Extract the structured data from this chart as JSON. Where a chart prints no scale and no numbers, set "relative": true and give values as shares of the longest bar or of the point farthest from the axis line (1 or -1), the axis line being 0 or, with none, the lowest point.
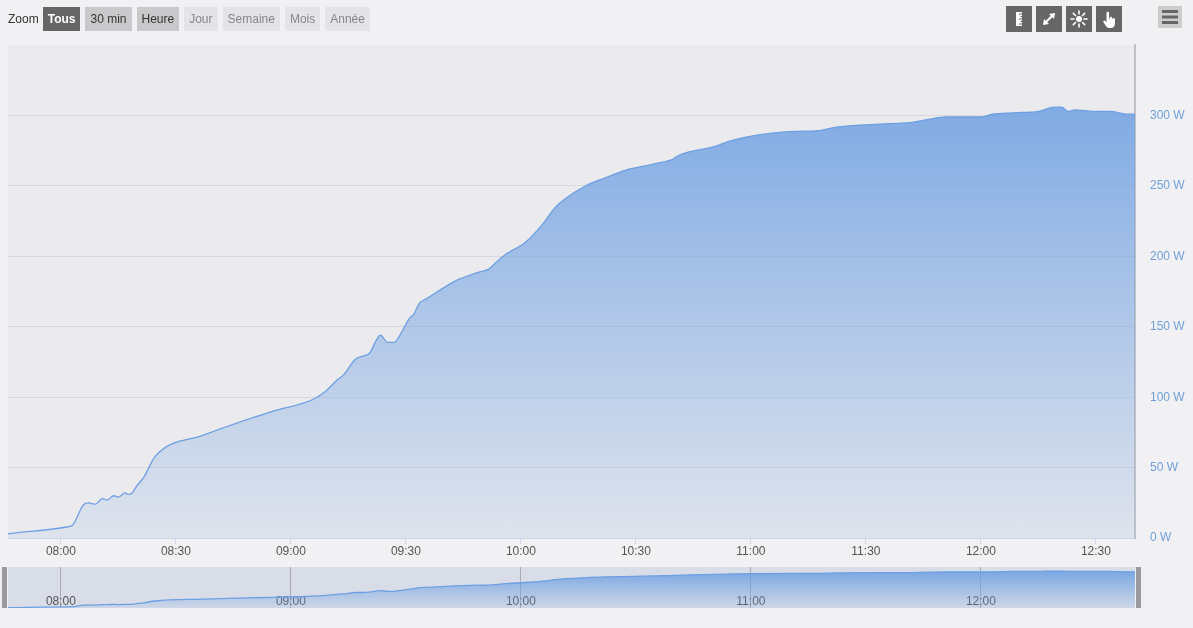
{
  "chart_data": [
    {
      "type": "area",
      "annotations": [
        "Zoom",
        "Tous",
        "30 min",
        "Heure",
        "Jour",
        "Semaine",
        "Mois",
        "Année"
      ],
      "x": [
        7.77,
        8.03,
        8.05,
        8.1,
        8.12,
        8.15,
        8.18,
        8.2,
        8.23,
        8.25,
        8.28,
        8.29,
        8.31,
        8.33,
        8.36,
        8.41,
        8.62,
        8.92,
        9.09,
        9.15,
        9.2,
        9.23,
        9.28,
        9.31,
        9.34,
        9.39,
        9.42,
        9.45,
        9.47,
        9.52,
        9.53,
        9.56,
        9.59,
        9.72,
        9.82,
        9.86,
        9.9,
        9.93,
        10.02,
        10.1,
        10.15,
        10.28,
        10.37,
        10.45,
        10.59,
        10.66,
        10.69,
        10.84,
        10.91,
        11.02,
        11.24,
        11.27,
        11.38,
        11.56,
        11.69,
        11.76,
        11.85,
        12.0,
        12.05,
        12.14,
        12.25,
        12.32,
        12.35,
        12.38,
        12.41,
        12.49,
        12.56,
        12.64,
        12.67
      ],
      "values": [
        3,
        8,
        9,
        24,
        25,
        24,
        28,
        27,
        30,
        29,
        32,
        31,
        32,
        37,
        43,
        58,
        73,
        90,
        98,
        104,
        112,
        116,
        127,
        129,
        131,
        144,
        139,
        139,
        143,
        157,
        158,
        167,
        170,
        183,
        189,
        191,
        197,
        201,
        210,
        224,
        235,
        250,
        256,
        261,
        266,
        269,
        272,
        278,
        282,
        286,
        289,
        289,
        292,
        294,
        295,
        297,
        299,
        299,
        301,
        302,
        303,
        306,
        306,
        303,
        304,
        303,
        303,
        301,
        301
      ],
      "color": "#6d9fe2",
      "xlim": [
        7.77,
        12.67
      ],
      "xticks": [
        {
          "value": 8,
          "label": "08:00"
        },
        {
          "value": 8.5,
          "label": "08:30"
        },
        {
          "value": 9,
          "label": "09:00"
        },
        {
          "value": 9.5,
          "label": "09:30"
        },
        {
          "value": 10,
          "label": "10:00"
        },
        {
          "value": 10.5,
          "label": "10:30"
        },
        {
          "value": 11,
          "label": "11:00"
        },
        {
          "value": 11.5,
          "label": "11:30"
        },
        {
          "value": 12,
          "label": "12:00"
        },
        {
          "value": 12.5,
          "label": "12:30"
        }
      ],
      "ylim": [
        0,
        350
      ],
      "yticks": [
        {
          "value": 0,
          "label": "0 W"
        },
        {
          "value": 50,
          "label": "50 W"
        },
        {
          "value": 100,
          "label": "100 W"
        },
        {
          "value": 150,
          "label": "150 W"
        },
        {
          "value": 200,
          "label": "200 W"
        },
        {
          "value": 250,
          "label": "250 W"
        },
        {
          "value": 300,
          "label": "300 W"
        }
      ],
      "grid": "y",
      "marker": "none"
    },
    {
      "type": "area",
      "relative": true,
      "x": [
        7.77,
        8.03,
        8.05,
        8.1,
        8.12,
        8.15,
        8.18,
        8.2,
        8.23,
        8.25,
        8.28,
        8.29,
        8.31,
        8.33,
        8.36,
        8.41,
        8.62,
        8.92,
        9.09,
        9.15,
        9.2,
        9.23,
        9.28,
        9.31,
        9.34,
        9.39,
        9.42,
        9.45,
        9.47,
        9.52,
        9.53,
        9.56,
        9.59,
        9.72,
        9.82,
        9.86,
        9.9,
        9.93,
        10.02,
        10.1,
        10.15,
        10.28,
        10.37,
        10.45,
        10.59,
        10.66,
        10.69,
        10.84,
        10.91,
        11.02,
        11.24,
        11.27,
        11.38,
        11.56,
        11.69,
        11.76,
        11.85,
        12.0,
        12.05,
        12.14,
        12.25,
        12.32,
        12.35,
        12.38,
        12.41,
        12.49,
        12.56,
        12.64,
        12.67
      ],
      "values": [
        0.01,
        0.03,
        0.03,
        0.08,
        0.08,
        0.08,
        0.09,
        0.09,
        0.1,
        0.09,
        0.1,
        0.1,
        0.1,
        0.12,
        0.14,
        0.19,
        0.24,
        0.29,
        0.32,
        0.34,
        0.37,
        0.38,
        0.42,
        0.42,
        0.43,
        0.47,
        0.45,
        0.45,
        0.47,
        0.51,
        0.52,
        0.55,
        0.56,
        0.6,
        0.62,
        0.62,
        0.64,
        0.66,
        0.69,
        0.73,
        0.77,
        0.82,
        0.84,
        0.85,
        0.87,
        0.88,
        0.89,
        0.91,
        0.92,
        0.93,
        0.94,
        0.94,
        0.95,
        0.96,
        0.96,
        0.97,
        0.98,
        0.98,
        0.98,
        0.99,
        0.99,
        1,
        1,
        0.99,
        0.99,
        0.99,
        0.99,
        0.98,
        0.98
      ],
      "color": "#6d9fe2",
      "xlim": [
        7.77,
        12.67
      ],
      "xticks": [
        {
          "value": 8,
          "label": "08:00"
        },
        {
          "value": 9,
          "label": "09:00"
        },
        {
          "value": 10,
          "label": "10:00"
        },
        {
          "value": 11,
          "label": "11:00"
        },
        {
          "value": 12,
          "label": "12:00"
        }
      ],
      "grid": "x",
      "tick_labels": "x",
      "marker": "none"
    }
  ]
}
